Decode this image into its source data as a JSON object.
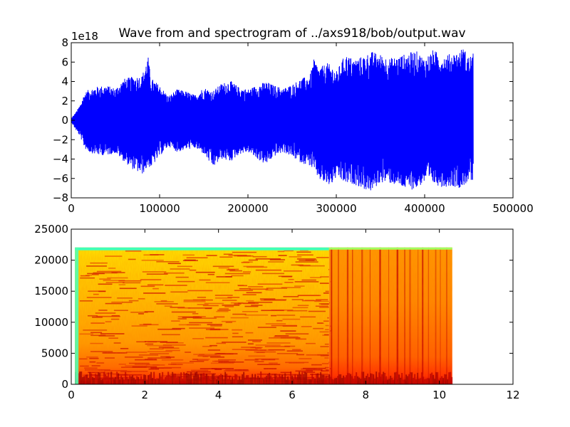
{
  "title": "Wave from and spectrogram of ../axs918/bob/output.wav",
  "chart_data": [
    {
      "type": "line",
      "title": "Wave from and spectrogram of ../axs918/bob/output.wav",
      "y_offset_label": "1e18",
      "xlim": [
        0,
        500000
      ],
      "ylim": [
        -8,
        8
      ],
      "x_ticks": [
        "0",
        "100000",
        "200000",
        "300000",
        "400000",
        "500000"
      ],
      "y_ticks": [
        "−8",
        "−6",
        "−4",
        "−2",
        "0",
        "2",
        "4",
        "6",
        "8"
      ],
      "color": "#0000ff",
      "grid": false,
      "n_samples": 455000,
      "envelope": {
        "x": [
          0,
          5000,
          10000,
          15000,
          20000,
          30000,
          40000,
          50000,
          60000,
          70000,
          80000,
          87000,
          90000,
          100000,
          110000,
          120000,
          130000,
          140000,
          150000,
          160000,
          170000,
          180000,
          190000,
          200000,
          210000,
          220000,
          230000,
          240000,
          250000,
          260000,
          270000,
          275000,
          280000,
          290000,
          295000,
          300000,
          310000,
          320000,
          330000,
          340000,
          350000,
          360000,
          370000,
          380000,
          390000,
          400000,
          410000,
          420000,
          430000,
          440000,
          443000,
          450000,
          455000
        ],
        "upper": [
          0.2,
          0.8,
          1.6,
          2.8,
          3.2,
          3.5,
          3.6,
          3.3,
          4.3,
          4.5,
          4.6,
          6.6,
          4.4,
          3.6,
          2.5,
          3.2,
          3.0,
          2.6,
          3.4,
          3.0,
          3.8,
          4.1,
          3.4,
          3.2,
          3.6,
          4.0,
          3.6,
          3.3,
          3.7,
          4.3,
          4.6,
          6.4,
          5.4,
          5.9,
          5.6,
          5.0,
          6.8,
          6.3,
          6.6,
          7.1,
          6.8,
          6.4,
          6.6,
          6.9,
          7.2,
          6.4,
          7.3,
          6.6,
          6.9,
          7.1,
          7.6,
          6.6,
          6.9
        ],
        "lower": [
          -0.2,
          -1.0,
          -1.7,
          -2.9,
          -3.3,
          -3.6,
          -3.6,
          -3.4,
          -4.3,
          -5.1,
          -5.6,
          -4.8,
          -4.9,
          -3.7,
          -2.7,
          -3.3,
          -3.0,
          -2.9,
          -3.5,
          -4.9,
          -4.0,
          -4.3,
          -3.5,
          -3.3,
          -4.0,
          -4.6,
          -3.7,
          -3.3,
          -3.8,
          -4.4,
          -4.7,
          -5.3,
          -6.1,
          -6.8,
          -6.6,
          -5.9,
          -6.6,
          -6.6,
          -7.1,
          -7.4,
          -6.4,
          -6.5,
          -6.8,
          -7.2,
          -7.1,
          -6.4,
          -6.6,
          -6.9,
          -6.8,
          -7.0,
          -6.9,
          -6.2,
          -6.7
        ]
      }
    },
    {
      "type": "heatmap",
      "xlim": [
        0,
        12
      ],
      "ylim": [
        0,
        25000
      ],
      "x_ticks": [
        "0",
        "2",
        "4",
        "6",
        "8",
        "10",
        "12"
      ],
      "y_ticks": [
        "0",
        "5000",
        "10000",
        "15000",
        "20000",
        "25000"
      ],
      "x_extent": [
        0.1,
        10.35
      ],
      "freq_max": 22050,
      "colormap": "jet",
      "grid": false
    }
  ]
}
